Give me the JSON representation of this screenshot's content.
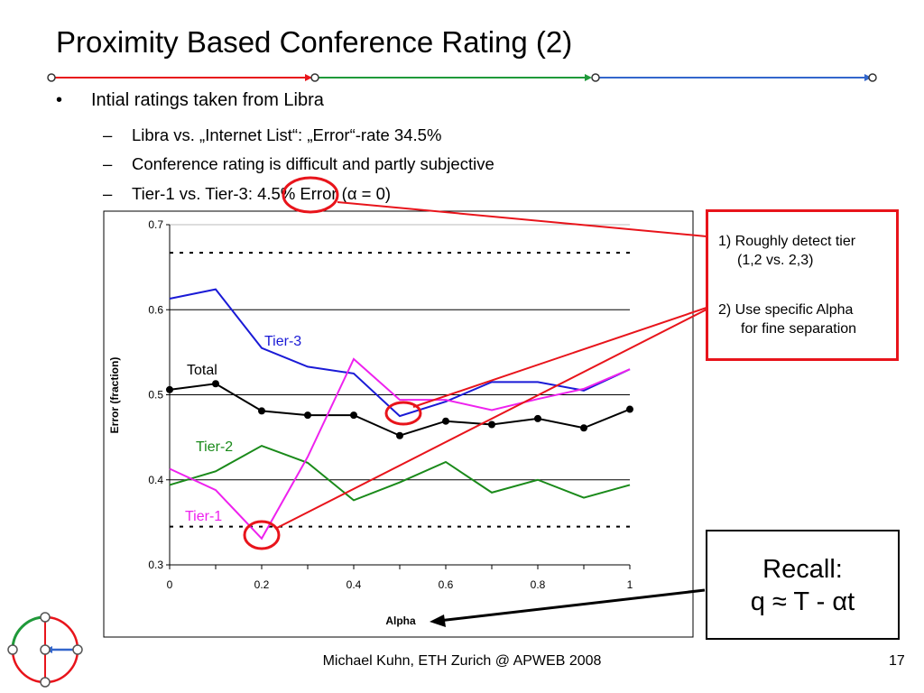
{
  "title": "Proximity Based Conference Rating (2)",
  "bullets": {
    "main": "Intial ratings taken from Libra",
    "bullet_symbol": "•",
    "dash_symbol": "–",
    "subs": [
      "Libra vs. „Internet List“: „Error“-rate 34.5%",
      "Conference rating is difficult and partly subjective",
      "Tier-1 vs. Tier-3: 4.5% Error (α = 0)"
    ]
  },
  "callout": {
    "item1_line1": "1) Roughly detect tier",
    "item1_line2": "(1,2 vs. 2,3)",
    "item2_line1": "2) Use specific Alpha",
    "item2_line2": "for fine separation"
  },
  "recall": {
    "line1": "Recall:",
    "line2": "q ≈ T - αt"
  },
  "footer": "Michael Kuhn, ETH Zurich @ APWEB 2008",
  "page_number": "17",
  "colors": {
    "nav_red": "#e8141b",
    "nav_green": "#1f9a3a",
    "nav_blue": "#3366cc",
    "annotation_red": "#e8141b"
  },
  "chart_data": {
    "type": "line",
    "title": "",
    "xlabel": "Alpha",
    "ylabel": "Error (fraction)",
    "xlim": [
      0,
      1
    ],
    "ylim": [
      0.3,
      0.7
    ],
    "x_ticks": [
      "0",
      "0.2",
      "0.4",
      "0.6",
      "0.8",
      "1"
    ],
    "y_ticks": [
      "0.3",
      "0.4",
      "0.5",
      "0.6",
      "0.7"
    ],
    "grid": true,
    "x": [
      0,
      0.1,
      0.2,
      0.3,
      0.4,
      0.5,
      0.6,
      0.7,
      0.8,
      0.9,
      1.0
    ],
    "series": [
      {
        "name": "Tier-3",
        "color": "#1a1ad6",
        "markers": false,
        "values": [
          0.613,
          0.624,
          0.555,
          0.533,
          0.525,
          0.475,
          0.492,
          0.515,
          0.515,
          0.505,
          0.53
        ]
      },
      {
        "name": "Total",
        "color": "#000000",
        "markers": true,
        "values": [
          0.506,
          0.513,
          0.481,
          0.476,
          0.476,
          0.452,
          0.469,
          0.465,
          0.472,
          0.461,
          0.483
        ]
      },
      {
        "name": "Tier-2",
        "color": "#1a8a1a",
        "markers": false,
        "values": [
          0.394,
          0.41,
          0.44,
          0.42,
          0.376,
          0.397,
          0.421,
          0.385,
          0.4,
          0.379,
          0.394
        ]
      },
      {
        "name": "Tier-1",
        "color": "#ee22ee",
        "markers": false,
        "values": [
          0.413,
          0.388,
          0.331,
          0.427,
          0.542,
          0.494,
          0.494,
          0.482,
          0.495,
          0.507,
          0.53
        ]
      }
    ],
    "reference_lines": [
      0.667,
      0.345
    ]
  }
}
